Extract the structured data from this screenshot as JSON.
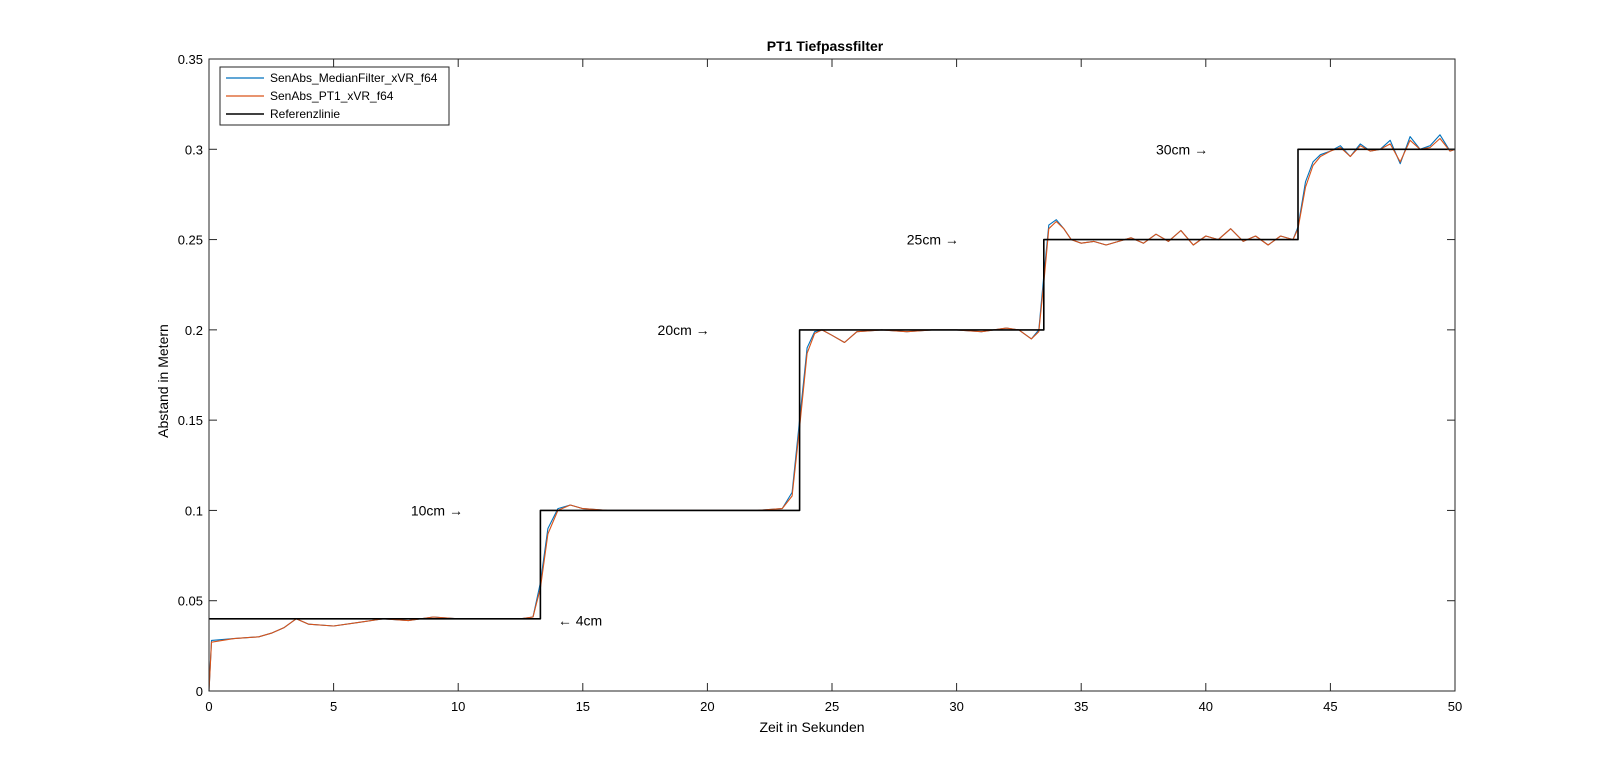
{
  "chart_data": {
    "type": "line",
    "title": "PT1 Tiefpassfilter",
    "xlabel": "Zeit in Sekunden",
    "ylabel": "Abstand in Metern",
    "xlim": [
      0,
      50
    ],
    "ylim": [
      0,
      0.35
    ],
    "xticks": [
      0,
      5,
      10,
      15,
      20,
      25,
      30,
      35,
      40,
      45,
      50
    ],
    "xtick_labels": [
      "0",
      "5",
      "10",
      "15",
      "20",
      "25",
      "30",
      "35",
      "40",
      "45",
      "50"
    ],
    "yticks": [
      0,
      0.05,
      0.1,
      0.15,
      0.2,
      0.25,
      0.3,
      0.35
    ],
    "ytick_labels": [
      "0",
      "0.05",
      "0.1",
      "0.15",
      "0.2",
      "0.25",
      "0.3",
      "0.35"
    ],
    "grid": false,
    "legend_position": "top-left",
    "series": [
      {
        "name": "SenAbs_MedianFilter_xVR_f64",
        "color": "#0072BD",
        "x": [
          0,
          0.1,
          1,
          2,
          2.5,
          3,
          3.5,
          4,
          5,
          6,
          7,
          8,
          9,
          10,
          11,
          12,
          12.5,
          13,
          13.3,
          13.6,
          14,
          14.5,
          15,
          16,
          18,
          20,
          22,
          23,
          23.4,
          23.7,
          24,
          24.3,
          24.6,
          25,
          25.5,
          26,
          27,
          28,
          29,
          30,
          31,
          32,
          32.5,
          33,
          33.3,
          33.5,
          33.7,
          34,
          34.3,
          34.6,
          35,
          35.5,
          36,
          36.5,
          37,
          37.5,
          38,
          38.5,
          39,
          39.5,
          40,
          40.5,
          41,
          41.5,
          42,
          42.5,
          43,
          43.5,
          43.7,
          44,
          44.3,
          44.6,
          45,
          45.4,
          45.8,
          46.2,
          46.6,
          47,
          47.4,
          47.8,
          48.2,
          48.6,
          49,
          49.4,
          49.8,
          50
        ],
        "y": [
          0,
          0.028,
          0.029,
          0.03,
          0.032,
          0.035,
          0.04,
          0.037,
          0.036,
          0.038,
          0.04,
          0.039,
          0.041,
          0.04,
          0.04,
          0.04,
          0.04,
          0.041,
          0.06,
          0.09,
          0.101,
          0.103,
          0.101,
          0.1,
          0.1,
          0.1,
          0.1,
          0.101,
          0.11,
          0.15,
          0.19,
          0.199,
          0.2,
          0.197,
          0.193,
          0.199,
          0.2,
          0.199,
          0.2,
          0.2,
          0.199,
          0.201,
          0.2,
          0.195,
          0.2,
          0.23,
          0.258,
          0.261,
          0.256,
          0.25,
          0.248,
          0.249,
          0.247,
          0.249,
          0.251,
          0.248,
          0.253,
          0.249,
          0.255,
          0.247,
          0.252,
          0.25,
          0.256,
          0.249,
          0.252,
          0.247,
          0.252,
          0.25,
          0.257,
          0.282,
          0.293,
          0.297,
          0.299,
          0.302,
          0.296,
          0.303,
          0.299,
          0.3,
          0.305,
          0.292,
          0.307,
          0.3,
          0.302,
          0.308,
          0.299,
          0.3
        ]
      },
      {
        "name": "SenAbs_PT1_xVR_f64",
        "color": "#D95319",
        "x": [
          0,
          0.1,
          1,
          2,
          2.5,
          3,
          3.5,
          4,
          5,
          6,
          7,
          8,
          9,
          10,
          11,
          12,
          12.5,
          13,
          13.3,
          13.6,
          14,
          14.5,
          15,
          16,
          18,
          20,
          22,
          23,
          23.4,
          23.7,
          24,
          24.3,
          24.6,
          25,
          25.5,
          26,
          27,
          28,
          29,
          30,
          31,
          32,
          32.5,
          33,
          33.3,
          33.5,
          33.7,
          34,
          34.3,
          34.6,
          35,
          35.5,
          36,
          36.5,
          37,
          37.5,
          38,
          38.5,
          39,
          39.5,
          40,
          40.5,
          41,
          41.5,
          42,
          42.5,
          43,
          43.5,
          43.7,
          44,
          44.3,
          44.6,
          45,
          45.4,
          45.8,
          46.2,
          46.6,
          47,
          47.4,
          47.8,
          48.2,
          48.6,
          49,
          49.4,
          49.8,
          50
        ],
        "y": [
          0,
          0.027,
          0.029,
          0.03,
          0.032,
          0.035,
          0.04,
          0.037,
          0.036,
          0.038,
          0.04,
          0.039,
          0.041,
          0.04,
          0.04,
          0.04,
          0.04,
          0.041,
          0.057,
          0.087,
          0.1,
          0.103,
          0.101,
          0.1,
          0.1,
          0.1,
          0.1,
          0.101,
          0.108,
          0.146,
          0.187,
          0.198,
          0.2,
          0.197,
          0.193,
          0.199,
          0.2,
          0.199,
          0.2,
          0.2,
          0.199,
          0.201,
          0.2,
          0.195,
          0.199,
          0.226,
          0.256,
          0.26,
          0.256,
          0.25,
          0.248,
          0.249,
          0.247,
          0.249,
          0.251,
          0.248,
          0.253,
          0.249,
          0.255,
          0.247,
          0.252,
          0.25,
          0.256,
          0.249,
          0.252,
          0.247,
          0.252,
          0.25,
          0.256,
          0.279,
          0.291,
          0.296,
          0.299,
          0.301,
          0.296,
          0.302,
          0.299,
          0.3,
          0.303,
          0.293,
          0.305,
          0.3,
          0.301,
          0.306,
          0.299,
          0.3
        ]
      },
      {
        "name": "Referenzlinie",
        "color": "#000000",
        "x": [
          0,
          13.3,
          13.3,
          23.7,
          23.7,
          33.5,
          33.5,
          43.7,
          43.7,
          50
        ],
        "y": [
          0.04,
          0.04,
          0.1,
          0.1,
          0.2,
          0.2,
          0.25,
          0.25,
          0.3,
          0.3
        ]
      }
    ],
    "annotations": [
      {
        "text": "10cm →",
        "x": 8.1,
        "y": 0.1
      },
      {
        "text": "← 4cm",
        "x": 14.0,
        "y": 0.039
      },
      {
        "text": "20cm →",
        "x": 18.0,
        "y": 0.2
      },
      {
        "text": "25cm →",
        "x": 28.0,
        "y": 0.25
      },
      {
        "text": "30cm →",
        "x": 38.0,
        "y": 0.3
      }
    ]
  }
}
